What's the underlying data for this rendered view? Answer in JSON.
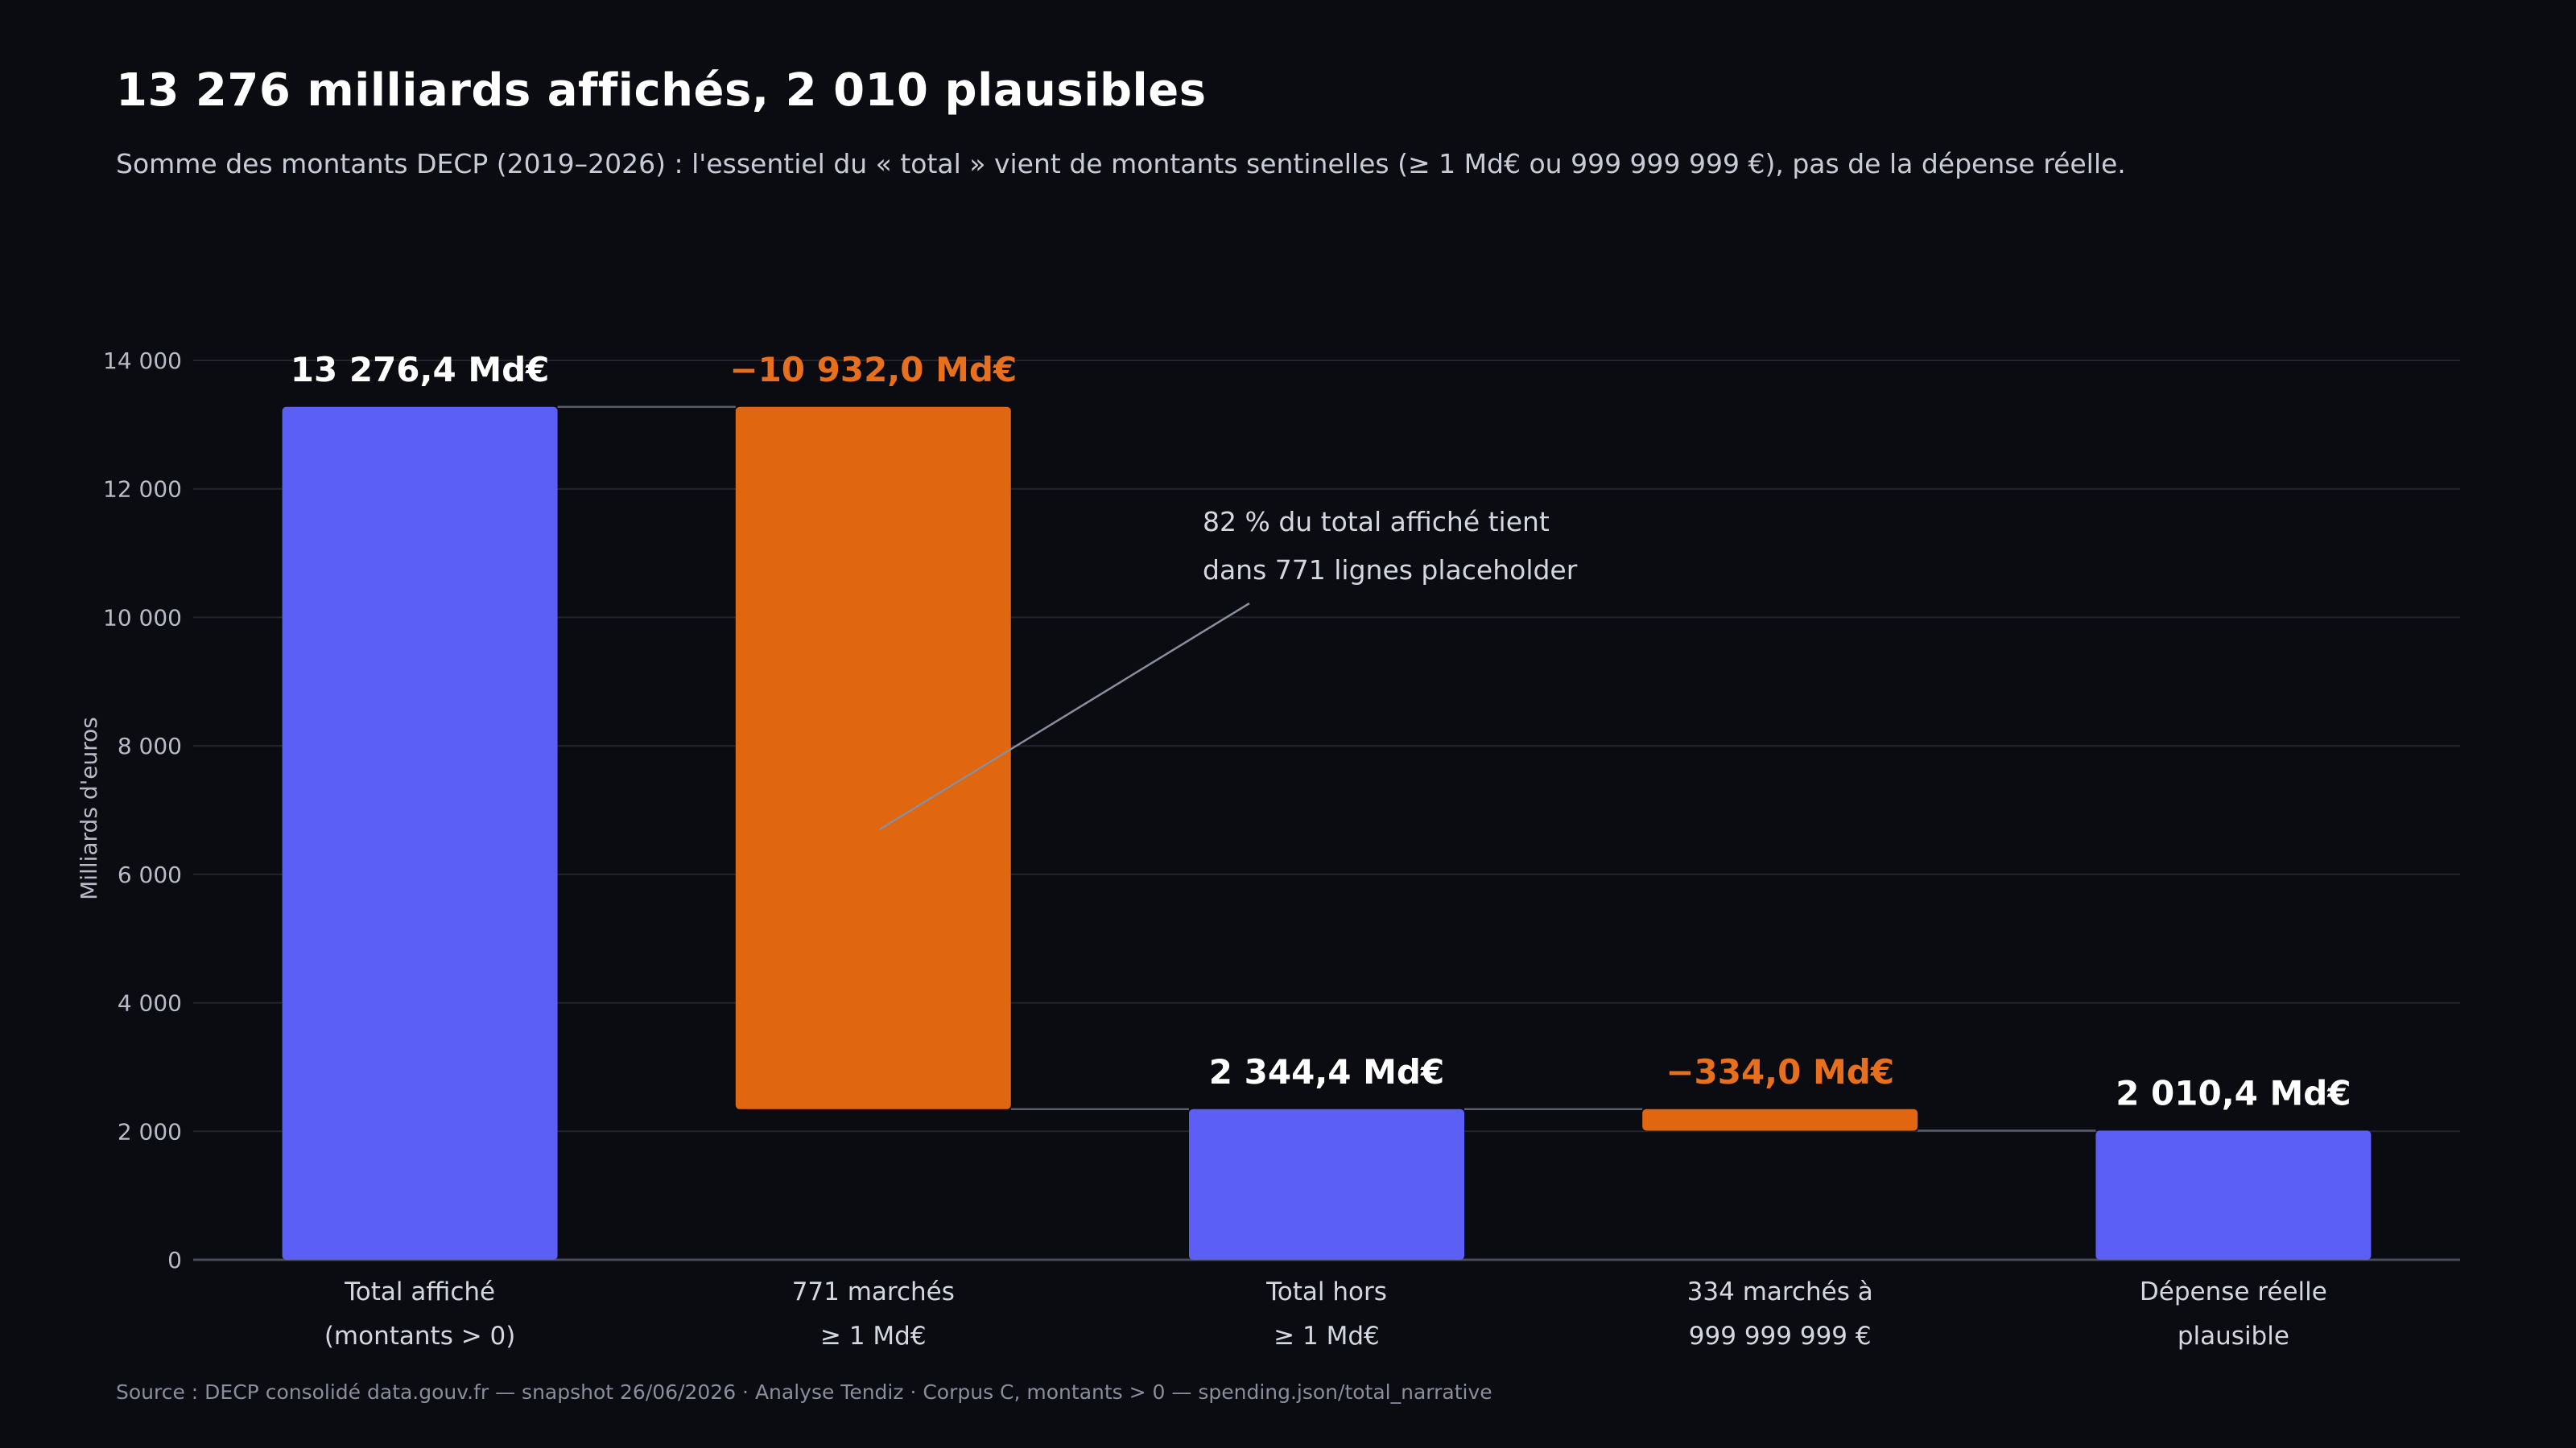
{
  "header": {
    "title": "13 276 milliards affichés, 2 010 plausibles",
    "subtitle": "Somme des montants DECP (2019–2026) : l'essentiel du « total » vient de montants sentinelles (≥ 1 Md€ ou 999 999 999 €), pas de la dépense réelle."
  },
  "footer": {
    "source": "Source : DECP consolidé data.gouv.fr — snapshot 26/06/2026 · Analyse Tendiz  ·  Corpus C, montants > 0 — spending.json/total_narrative"
  },
  "colors": {
    "total": "#5b5ff5",
    "decrease": "#e0660f",
    "negative_label": "#e8701c",
    "background": "#0b0b12",
    "grid": "#23242e"
  },
  "chart_data": {
    "type": "bar",
    "subtype": "waterfall",
    "ylabel": "Milliards d'euros",
    "ylim": [
      0,
      14000
    ],
    "yticks": [
      0,
      2000,
      4000,
      6000,
      8000,
      10000,
      12000,
      14000
    ],
    "ytick_labels": [
      "0",
      "2 000",
      "4 000",
      "6 000",
      "8 000",
      "10 000",
      "12 000",
      "14 000"
    ],
    "grid": true,
    "bars": [
      {
        "label_lines": [
          "Total affiché",
          "(montants > 0)"
        ],
        "kind": "total",
        "start": 0,
        "end": 13276.4,
        "value_label": "13 276,4 Md€"
      },
      {
        "label_lines": [
          "771 marchés",
          "≥ 1 Md€"
        ],
        "kind": "decrease",
        "start": 13276.4,
        "end": 2344.4,
        "value_label": "−10 932,0 Md€"
      },
      {
        "label_lines": [
          "Total hors",
          "≥ 1 Md€"
        ],
        "kind": "total",
        "start": 0,
        "end": 2344.4,
        "value_label": "2 344,4 Md€"
      },
      {
        "label_lines": [
          "334 marchés à",
          "999 999 999 €"
        ],
        "kind": "decrease",
        "start": 2344.4,
        "end": 2010.4,
        "value_label": "−334,0 Md€"
      },
      {
        "label_lines": [
          "Dépense réelle",
          "plausible"
        ],
        "kind": "total",
        "start": 0,
        "end": 2010.4,
        "value_label": "2 010,4 Md€"
      }
    ],
    "annotation": {
      "lines": [
        "82 % du total affiché tient",
        "dans 771 lignes placeholder"
      ],
      "points_to_bar": 1,
      "points_to_value": 6700
    }
  }
}
